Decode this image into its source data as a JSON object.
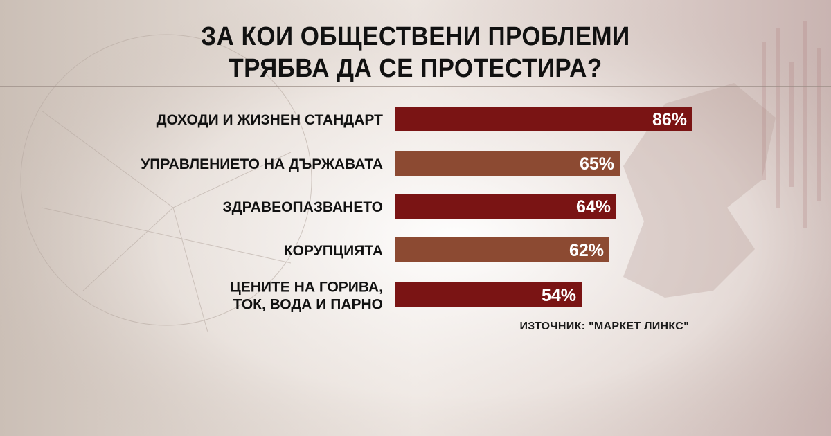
{
  "chart_data": {
    "type": "bar",
    "orientation": "horizontal",
    "title": [
      "ЗА КОИ ОБЩЕСТВЕНИ ПРОБЛЕМИ",
      "ТРЯБВА ДА СЕ ПРОТЕСТИРА?"
    ],
    "categories": [
      [
        "ДОХОДИ И ЖИЗНЕН СТАНДАРТ"
      ],
      [
        "УПРАВЛЕНИЕТО НА ДЪРЖАВАТА"
      ],
      [
        "ЗДРАВЕОПАЗВАНЕТО"
      ],
      [
        "КОРУПЦИЯТА"
      ],
      [
        "ЦЕНИТЕ НА ГОРИВА,",
        "ТОК, ВОДА И ПАРНО"
      ]
    ],
    "values": [
      86,
      65,
      64,
      62,
      54
    ],
    "value_labels": [
      "86%",
      "65%",
      "64%",
      "62%",
      "54%"
    ],
    "bar_colors": [
      "#7a1414",
      "#8c4a32",
      "#7a1414",
      "#8c4a32",
      "#7a1414"
    ],
    "xlim": [
      0,
      100
    ],
    "grid": false,
    "legend": "none"
  },
  "source": "ИЗТОЧНИК: \"МАРКЕТ ЛИНКС\""
}
